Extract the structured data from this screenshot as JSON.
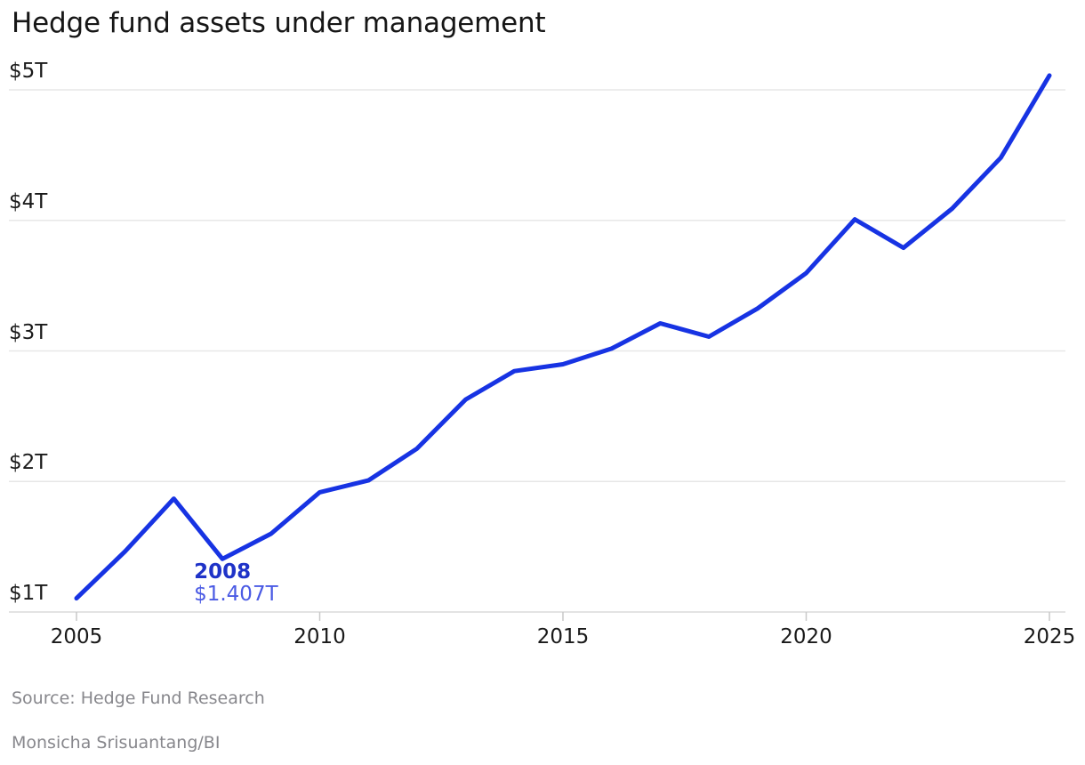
{
  "title": "Hedge fund assets under management",
  "annotation": {
    "year": "2008",
    "value": "$1.407T"
  },
  "footer": {
    "source": "Source: Hedge Fund Research",
    "credit": "Monsicha Srisuantang/BI"
  },
  "colors": {
    "line": "#1733e3",
    "annotation_year": "#1f33c8",
    "annotation_value": "#4a5ae4",
    "grid": "#e7e7e7",
    "axis": "#dadada",
    "tick": "#c9c9c9",
    "text": "#1a1a1a",
    "muted": "#87878c",
    "title": "#161616",
    "background": "#ffffff"
  },
  "chart_data": {
    "type": "line",
    "title": "Hedge fund assets under management",
    "xlabel": "",
    "ylabel": "",
    "unit": "trillion USD",
    "x": [
      2005,
      2006,
      2007,
      2008,
      2009,
      2010,
      2011,
      2012,
      2013,
      2014,
      2015,
      2016,
      2017,
      2018,
      2019,
      2020,
      2021,
      2022,
      2023,
      2024,
      2025
    ],
    "series": [
      {
        "name": "Hedge fund assets under management ($T)",
        "values": [
          1.105,
          1.465,
          1.868,
          1.407,
          1.6,
          1.917,
          2.008,
          2.252,
          2.628,
          2.845,
          2.898,
          3.018,
          3.211,
          3.109,
          3.325,
          3.596,
          4.008,
          3.79,
          4.09,
          4.48,
          5.11
        ]
      }
    ],
    "x_ticks": [
      2005,
      2010,
      2015,
      2020,
      2025
    ],
    "y_ticks": [
      {
        "value": 1,
        "label": "$1T"
      },
      {
        "value": 2,
        "label": "$2T"
      },
      {
        "value": 3,
        "label": "$3T"
      },
      {
        "value": 4,
        "label": "$4T"
      },
      {
        "value": 5,
        "label": "$5T"
      }
    ],
    "xlim": [
      2005,
      2025
    ],
    "ylim": [
      1,
      5.25
    ],
    "grid": "horizontal",
    "legend": "none",
    "annotated_point": {
      "x": 2008,
      "y": 1.407,
      "label_line1": "2008",
      "label_line2": "$1.407T"
    }
  }
}
